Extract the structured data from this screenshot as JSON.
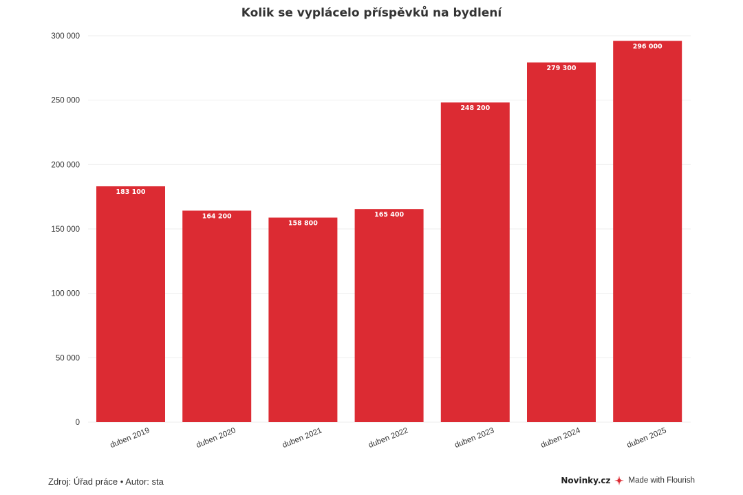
{
  "chart_data": {
    "type": "bar",
    "title": "Kolik se vyplácelo příspěvků na bydlení",
    "xlabel": "",
    "ylabel": "",
    "categories": [
      "duben 2019",
      "duben 2020",
      "duben 2021",
      "duben 2022",
      "duben 2023",
      "duben 2024",
      "duben 2025"
    ],
    "values": [
      183100,
      164200,
      158800,
      165400,
      248200,
      279300,
      296000
    ],
    "value_labels": [
      "183 100",
      "164 200",
      "158 800",
      "165 400",
      "248 200",
      "279 300",
      "296 000"
    ],
    "ylim": [
      0,
      300000
    ],
    "yticks": [
      0,
      50000,
      100000,
      150000,
      200000,
      250000,
      300000
    ],
    "ytick_labels": [
      "0",
      "50 000",
      "100 000",
      "150 000",
      "200 000",
      "250 000",
      "300 000"
    ],
    "grid": true,
    "bar_color": "#dc2b33",
    "grid_color": "#eeeeee"
  },
  "footer": {
    "source": "Zdroj: Úřad práce • Autor: sta",
    "brand": "Novinky.cz",
    "flourish": "Made with Flourish"
  },
  "icons": {
    "flourish": "flourish-star-icon"
  }
}
